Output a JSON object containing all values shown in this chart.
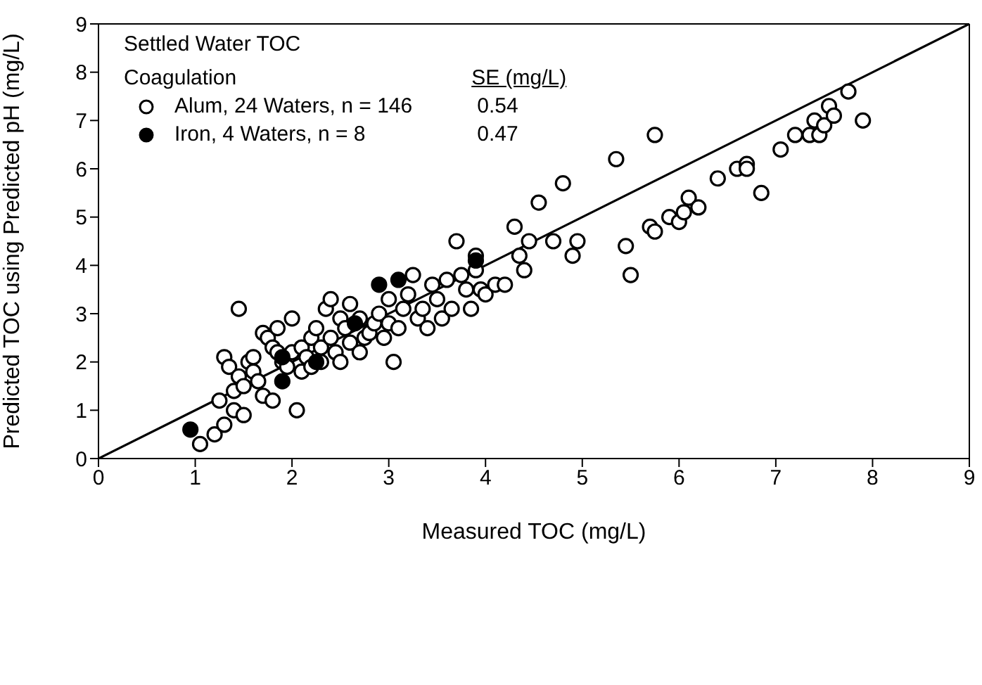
{
  "chart_data": {
    "type": "scatter",
    "title": "Settled Water TOC",
    "legend_title": "Coagulation",
    "xlabel": "Measured TOC (mg/L)",
    "ylabel": "Predicted TOC using Predicted pH (mg/L)",
    "xlim": [
      0,
      9
    ],
    "ylim": [
      0,
      9
    ],
    "xticks": [
      0,
      1,
      2,
      3,
      4,
      5,
      6,
      7,
      8,
      9
    ],
    "yticks": [
      0,
      1,
      2,
      3,
      4,
      5,
      6,
      7,
      8,
      9
    ],
    "legend": "top left",
    "marker": "circle",
    "annotations": [
      "SE (mg/L)",
      "0.54",
      "0.47"
    ],
    "series": [
      {
        "name": "Alum, 24 Waters, n = 146",
        "color": "#000000",
        "x": [
          1.05,
          1.2,
          1.3,
          1.25,
          1.4,
          1.5,
          1.4,
          1.3,
          1.35,
          1.45,
          1.5,
          1.45,
          1.55,
          1.6,
          1.6,
          1.65,
          1.7,
          1.7,
          1.75,
          1.8,
          1.8,
          1.85,
          1.85,
          1.9,
          1.95,
          2.0,
          2.0,
          2.05,
          2.1,
          2.1,
          2.15,
          2.2,
          2.2,
          2.25,
          2.3,
          2.3,
          2.35,
          2.4,
          2.4,
          2.45,
          2.5,
          2.5,
          2.55,
          2.6,
          2.6,
          2.7,
          2.7,
          2.75,
          2.8,
          2.85,
          2.9,
          2.95,
          3.0,
          3.0,
          3.05,
          3.1,
          3.15,
          3.2,
          3.25,
          3.3,
          3.35,
          3.4,
          3.45,
          3.5,
          3.55,
          3.6,
          3.65,
          3.7,
          3.75,
          3.8,
          3.85,
          3.9,
          3.9,
          3.95,
          4.0,
          4.1,
          4.2,
          4.3,
          4.35,
          4.4,
          4.45,
          4.55,
          4.7,
          4.8,
          4.9,
          4.95,
          5.35,
          5.45,
          5.5,
          5.75,
          5.7,
          5.75,
          5.9,
          6.0,
          6.05,
          6.1,
          6.2,
          6.4,
          6.6,
          6.7,
          6.7,
          6.85,
          7.05,
          7.2,
          7.35,
          7.4,
          7.45,
          7.5,
          7.55,
          7.6,
          7.75,
          7.9
        ],
        "values": [
          0.3,
          0.5,
          0.7,
          1.2,
          1.0,
          0.9,
          1.4,
          2.1,
          1.9,
          1.7,
          1.5,
          3.1,
          2.0,
          2.1,
          1.8,
          1.6,
          1.3,
          2.6,
          2.5,
          1.2,
          2.3,
          2.7,
          2.2,
          2.0,
          1.9,
          2.2,
          2.9,
          1.0,
          1.8,
          2.3,
          2.1,
          1.9,
          2.5,
          2.7,
          2.3,
          2.0,
          3.1,
          3.3,
          2.5,
          2.2,
          2.9,
          2.0,
          2.7,
          2.4,
          3.2,
          2.2,
          2.9,
          2.5,
          2.6,
          2.8,
          3.0,
          2.5,
          3.3,
          2.8,
          2.0,
          2.7,
          3.1,
          3.4,
          3.8,
          2.9,
          3.1,
          2.7,
          3.6,
          3.3,
          2.9,
          3.7,
          3.1,
          4.5,
          3.8,
          3.5,
          3.1,
          3.9,
          4.2,
          3.5,
          3.4,
          3.6,
          3.6,
          4.8,
          4.2,
          3.9,
          4.5,
          5.3,
          4.5,
          5.7,
          4.2,
          4.5,
          6.2,
          4.4,
          3.8,
          6.7,
          4.8,
          4.7,
          5.0,
          4.9,
          5.1,
          5.4,
          5.2,
          5.8,
          6.0,
          6.1,
          6.0,
          5.5,
          6.4,
          6.7,
          6.7,
          7.0,
          6.7,
          6.9,
          7.3,
          7.1,
          7.6,
          7.0
        ]
      },
      {
        "name": "Iron, 4 Waters, n = 8",
        "color": "#000000",
        "x": [
          0.95,
          1.9,
          1.9,
          2.25,
          2.65,
          2.9,
          3.1,
          3.9
        ],
        "values": [
          0.6,
          1.6,
          2.1,
          2.0,
          2.8,
          3.6,
          3.7,
          4.1
        ]
      },
      {
        "type": "line",
        "marker": "none",
        "color": "#000000",
        "x": [
          0,
          9
        ],
        "values": [
          0,
          9
        ]
      }
    ]
  }
}
